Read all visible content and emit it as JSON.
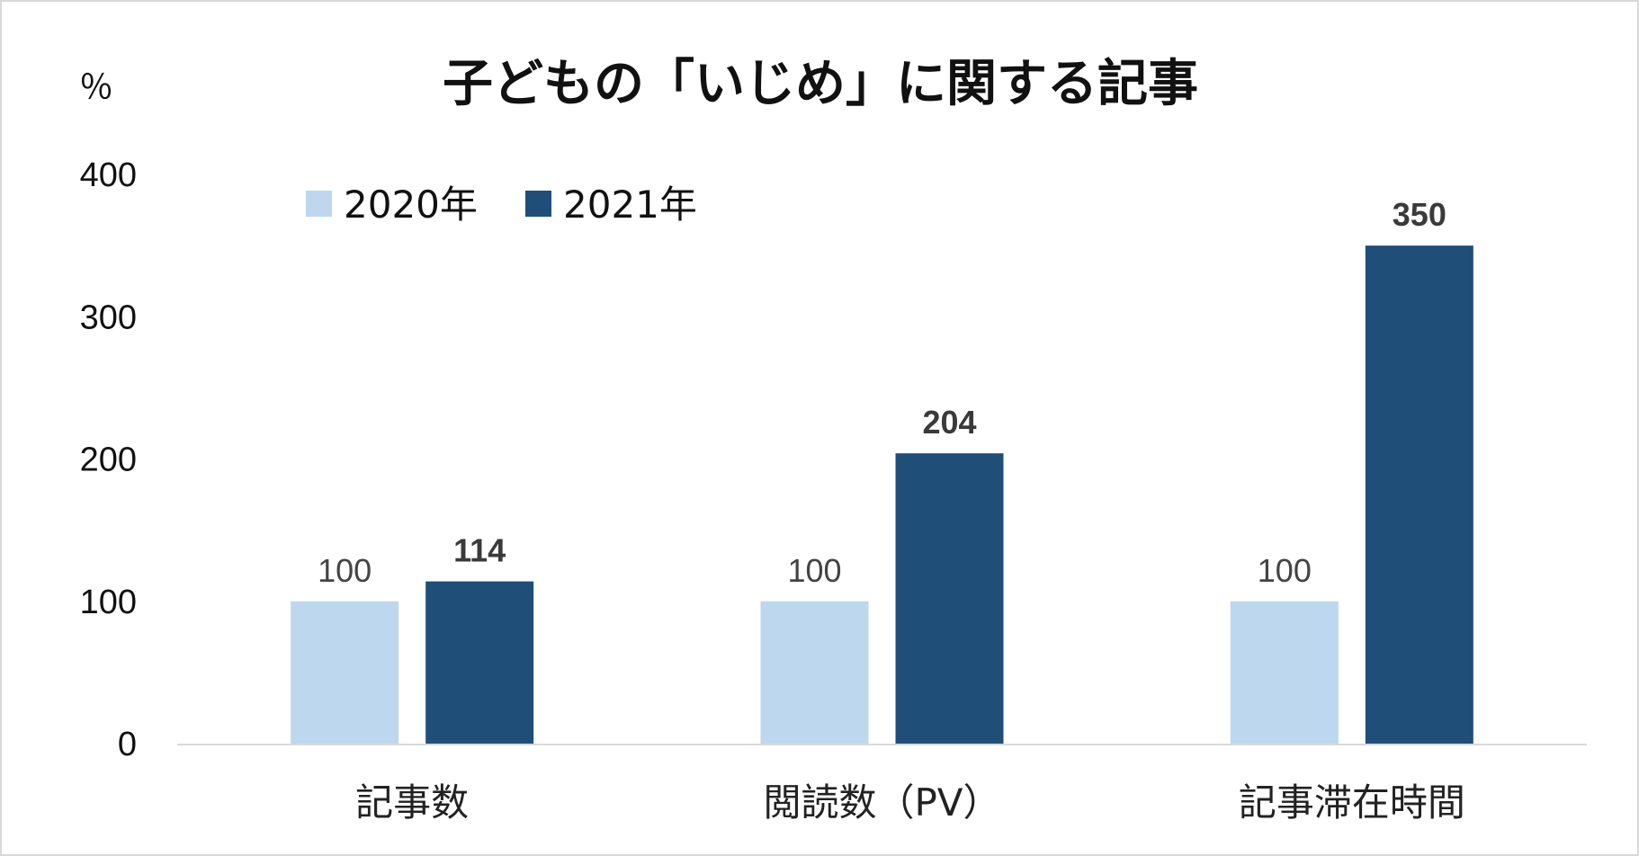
{
  "chart_data": {
    "type": "bar",
    "title": "子どもの「いじめ」に関する記事",
    "unit_label": "％",
    "categories": [
      "記事数",
      "閲読数（PV）",
      "記事滞在時間"
    ],
    "series": [
      {
        "name": "2020年",
        "values": [
          100,
          100,
          100
        ],
        "color": "#bdd7ee",
        "label_style": "normal"
      },
      {
        "name": "2021年",
        "values": [
          114,
          204,
          350
        ],
        "color": "#1f4e79",
        "label_style": "bold"
      }
    ],
    "ylim": [
      0,
      400
    ],
    "yticks": [
      0,
      100,
      200,
      300,
      400
    ],
    "legend": "top-left",
    "grid": false,
    "axis_color": "#d9d9d9"
  }
}
